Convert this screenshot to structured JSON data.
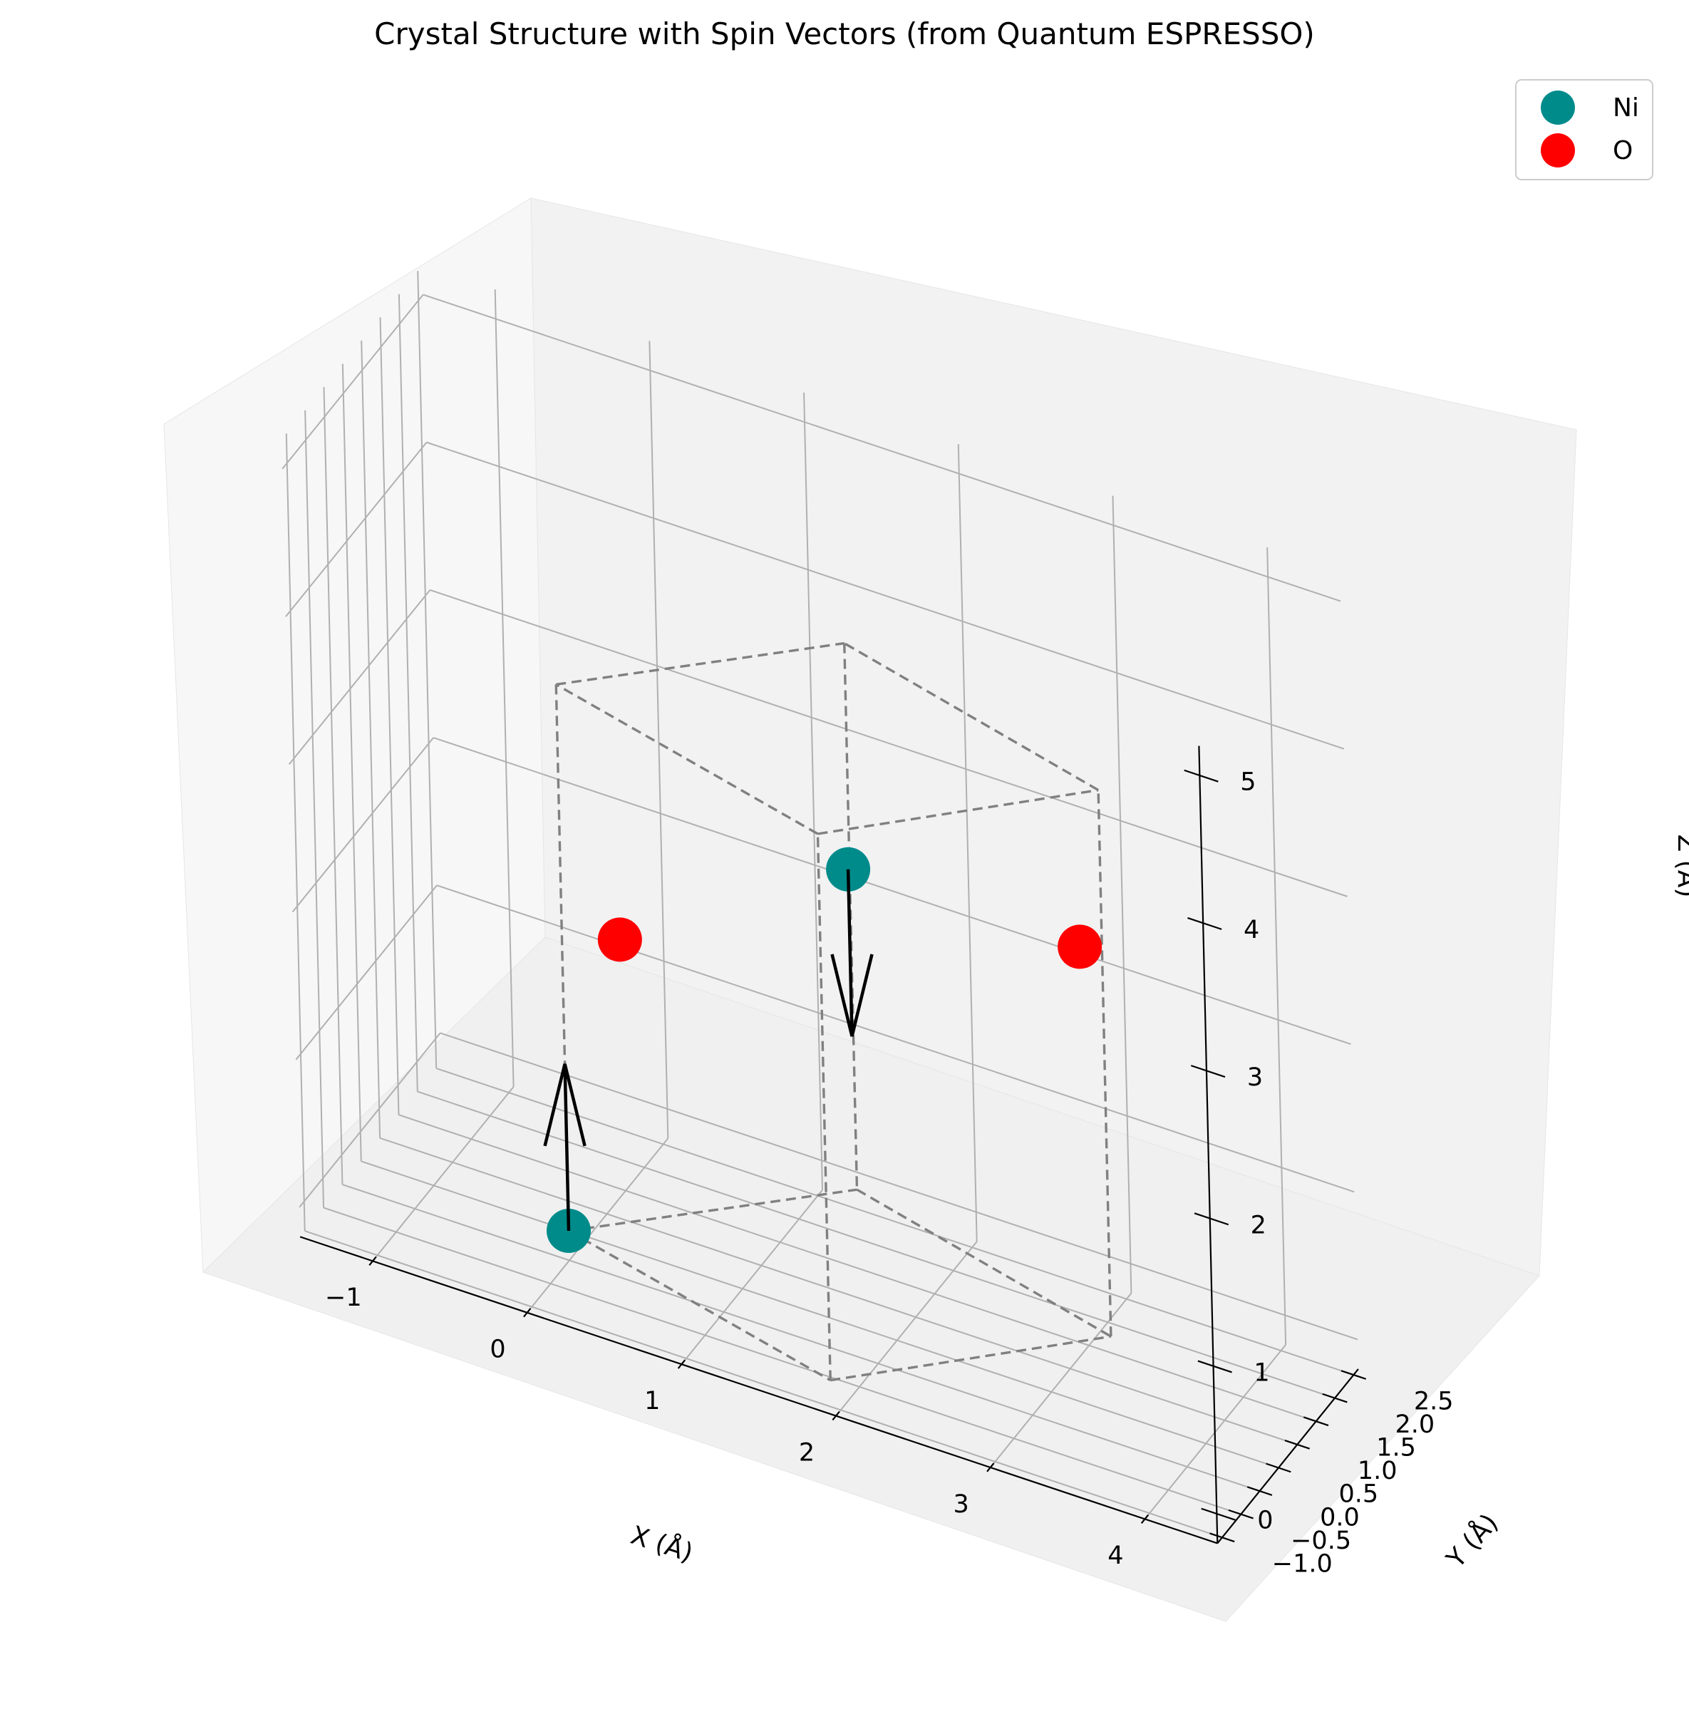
{
  "chart_data": {
    "type": "scatter",
    "title": "Crystal Structure with Spin Vectors (from Quantum ESPRESSO)",
    "xlabel": "X (Å)",
    "ylabel": "Y (Å)",
    "zlabel": "Z (Å)",
    "x_ticks": [
      "−1",
      "0",
      "1",
      "2",
      "3",
      "4"
    ],
    "y_ticks": [
      "−1.0",
      "−0.5",
      "0.0",
      "0.5",
      "1.0",
      "1.5",
      "2.0",
      "2.5"
    ],
    "z_ticks": [
      "0",
      "1",
      "2",
      "3",
      "4",
      "5"
    ],
    "grid": true,
    "legend_position": "top-right",
    "series": [
      {
        "name": "Ni",
        "color": "#008b8b",
        "points": [
          {
            "x": 0.0,
            "y": 0.0,
            "z": 0.0,
            "spin": "up"
          },
          {
            "x": 1.5,
            "y": 1.5,
            "z": 2.5,
            "spin": "down"
          }
        ]
      },
      {
        "name": "O",
        "color": "#ff0000",
        "points": [
          {
            "x": 0.0,
            "y": 1.5,
            "z": 1.5
          },
          {
            "x": 3.0,
            "y": 1.5,
            "z": 2.5
          }
        ]
      }
    ],
    "spin_vectors": [
      {
        "atom": "Ni",
        "from": {
          "x": 0.0,
          "y": 0.0,
          "z": 0.0
        },
        "direction": "up",
        "color": "#000000"
      },
      {
        "atom": "Ni",
        "from": {
          "x": 1.5,
          "y": 1.5,
          "z": 2.5
        },
        "direction": "down",
        "color": "#000000"
      }
    ],
    "unit_cell": {
      "style": "dashed",
      "color": "#808080"
    }
  }
}
